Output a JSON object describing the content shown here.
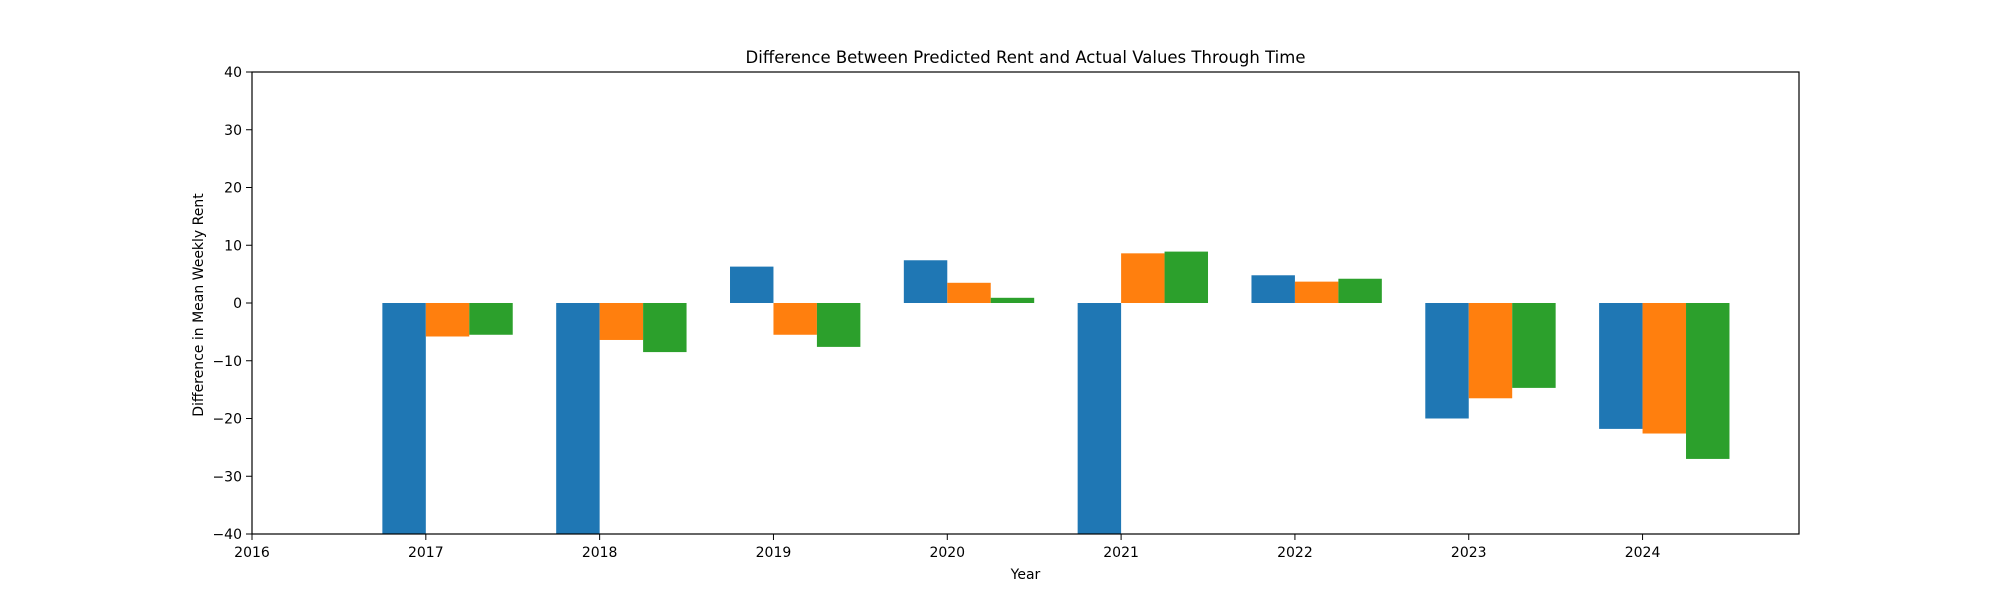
{
  "chart_data": {
    "type": "bar",
    "title": "Difference Between Predicted Rent and Actual Values Through Time",
    "xlabel": "Year",
    "ylabel": "Difference in Mean Weekly Rent",
    "xlim": [
      2016,
      2024.9
    ],
    "ylim": [
      -40,
      40
    ],
    "x_ticks": [
      "2016",
      "2017",
      "2018",
      "2019",
      "2020",
      "2021",
      "2022",
      "2023",
      "2024"
    ],
    "y_ticks": [
      "−40",
      "−30",
      "−20",
      "−10",
      "0",
      "10",
      "20",
      "30",
      "40"
    ],
    "categories": [
      "2017",
      "2018",
      "2019",
      "2020",
      "2021",
      "2022",
      "2023",
      "2024"
    ],
    "series": [
      {
        "color": "#1f77b4",
        "values": [
          -40,
          -40,
          6.3,
          7.4,
          -40,
          4.8,
          -20.0,
          -21.8
        ]
      },
      {
        "color": "#ff7f0e",
        "values": [
          -5.8,
          -6.4,
          -5.5,
          3.5,
          8.6,
          3.7,
          -16.5,
          -22.6
        ]
      },
      {
        "color": "#2ca02c",
        "values": [
          -5.5,
          -8.5,
          -7.6,
          0.9,
          8.9,
          4.2,
          -14.7,
          -27.0
        ]
      }
    ],
    "grid": false
  }
}
